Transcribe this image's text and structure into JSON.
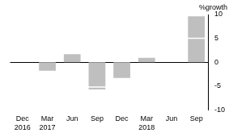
{
  "chart_data": {
    "type": "bar",
    "y_label": "%growth",
    "categories": [
      "Dec 2016",
      "Mar 2017",
      "Jun",
      "Sep",
      "Dec",
      "Mar 2018",
      "Jun",
      "Sep"
    ],
    "series": [
      {
        "type": "bar",
        "color": "#bfbfbf",
        "values": [
          null,
          -1.8,
          1.7,
          -5.7,
          -3.3,
          0.9,
          0,
          9.6
        ]
      },
      {
        "type": "line",
        "marker": "line",
        "color": "#ffffff",
        "values": [
          null,
          null,
          null,
          -5.2,
          null,
          null,
          null,
          5.0
        ]
      }
    ],
    "ylim": [
      -10,
      10
    ],
    "yticks": [
      -10,
      -5,
      0,
      5,
      10
    ],
    "grid": false
  }
}
